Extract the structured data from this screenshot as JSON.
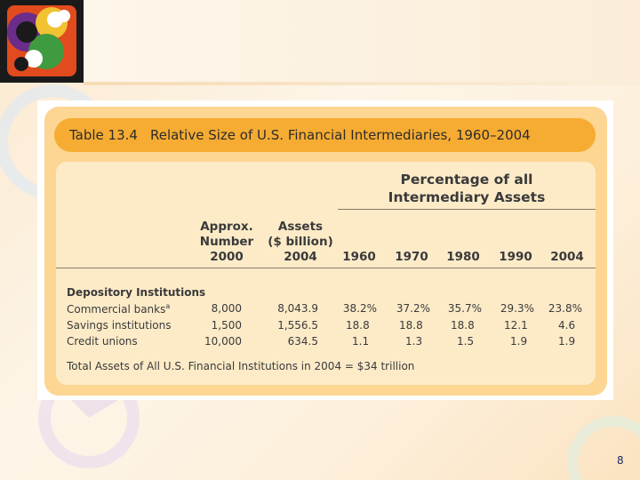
{
  "table": {
    "number": "Table 13.4",
    "title": "Relative Size of U.S. Financial Intermediaries, 1960–2004",
    "pct_header_line1": "Percentage of all",
    "pct_header_line2": "Intermediary Assets",
    "col_number": [
      "Approx.",
      "Number",
      "2000"
    ],
    "col_assets": [
      "Assets",
      "($ billion)",
      "2004"
    ],
    "years": [
      "1960",
      "1970",
      "1980",
      "1990",
      "2004"
    ],
    "section": "Depository Institutions",
    "rows": [
      {
        "name": "Commercial banks",
        "sup": "a",
        "number": "8,000",
        "assets": "8,043.9",
        "pct": [
          "38.2%",
          "37.2%",
          "35.7%",
          "29.3%",
          "23.8%"
        ]
      },
      {
        "name": "Savings institutions",
        "sup": "",
        "number": "1,500",
        "assets": "1,556.5",
        "pct": [
          "18.8",
          "18.8",
          "18.8",
          "12.1",
          "4.6"
        ]
      },
      {
        "name": "Credit unions",
        "sup": "",
        "number": "10,000",
        "assets": "634.5",
        "pct": [
          "1.1",
          "1.3",
          "1.5",
          "1.9",
          "1.9"
        ]
      }
    ],
    "footer": "Total Assets of All U.S. Financial Institutions in 2004 = $34 trillion"
  },
  "slide": {
    "page_number": "8"
  },
  "colors": {
    "title_bar": "#f6ac32",
    "card": "#fcd692",
    "inner": "#fdebc8",
    "page_number": "#1a2a66"
  },
  "icons": {
    "logo": "circular-abstract-logo"
  }
}
